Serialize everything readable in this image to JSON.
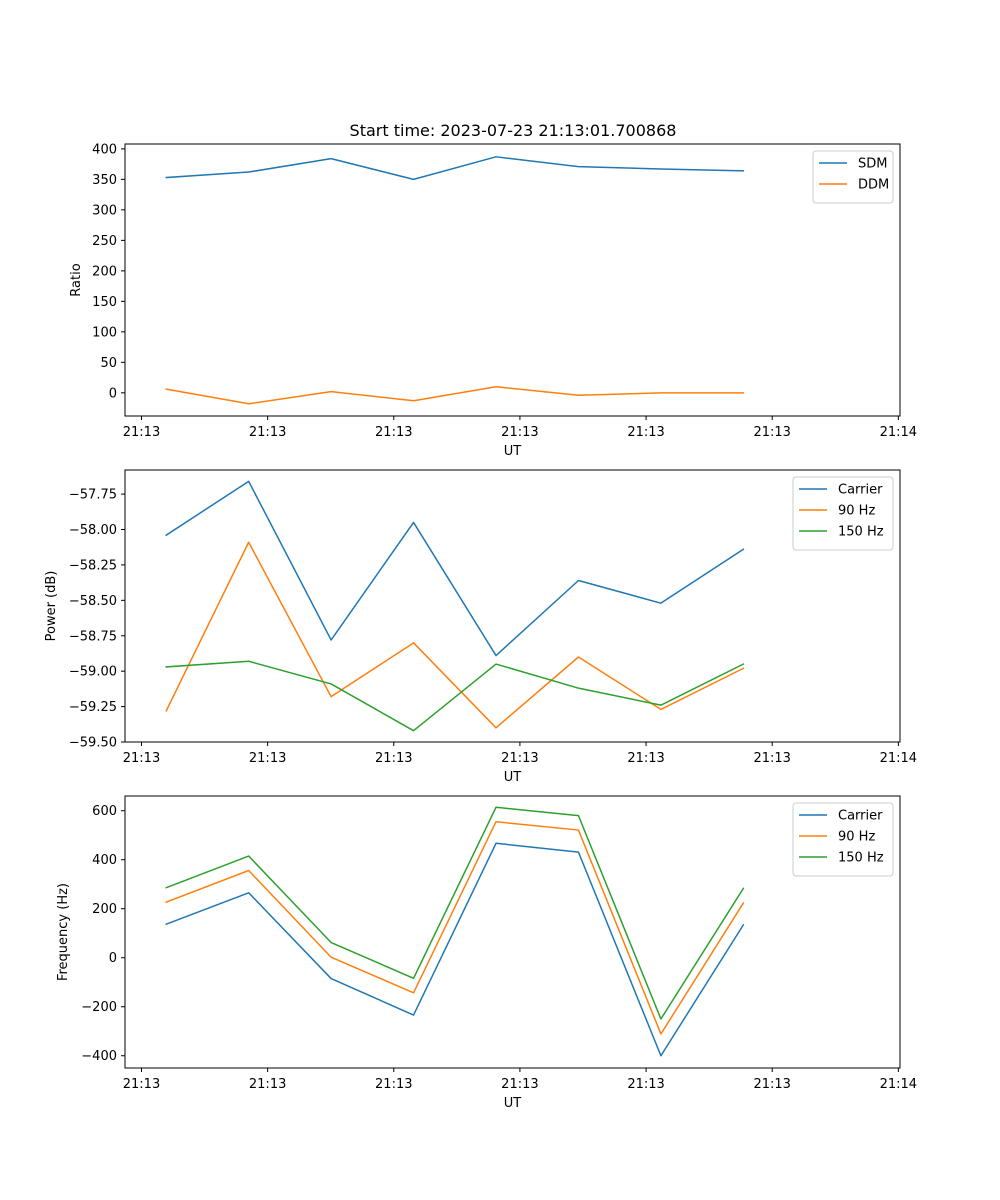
{
  "figure": {
    "title": "Start time: 2023-07-23 21:13:01.700868"
  },
  "colors": {
    "blue": "#1f77b4",
    "orange": "#ff7f0e",
    "green": "#2ca02c"
  },
  "chart_data": [
    {
      "type": "line",
      "title": "Start time: 2023-07-23 21:13:01.700868",
      "xlabel": "UT",
      "ylabel": "Ratio",
      "xlim": [
        -0.5,
        8.9
      ],
      "ylim": [
        -38,
        408
      ],
      "yticks": [
        0,
        50,
        100,
        150,
        200,
        250,
        300,
        350,
        400
      ],
      "ytick_labels": [
        "0",
        "50",
        "100",
        "150",
        "200",
        "250",
        "300",
        "350",
        "400"
      ],
      "xticks": [
        -0.3,
        1.23,
        2.76,
        4.29,
        5.82,
        7.35,
        8.88
      ],
      "xtick_labels": [
        "21:13",
        "21:13",
        "21:13",
        "21:13",
        "21:13",
        "21:13",
        "21:14"
      ],
      "x": [
        0,
        1,
        2,
        3,
        4,
        5,
        6,
        7
      ],
      "legend_loc": "upper right",
      "series": [
        {
          "name": "SDM",
          "color": "#1f77b4",
          "values": [
            353,
            362,
            384,
            350,
            387,
            371,
            367,
            364
          ]
        },
        {
          "name": "DDM",
          "color": "#ff7f0e",
          "values": [
            6,
            -18,
            2,
            -13,
            10,
            -4,
            0,
            0
          ]
        }
      ]
    },
    {
      "type": "line",
      "title": "",
      "xlabel": "UT",
      "ylabel": "Power (dB)",
      "xlim": [
        -0.5,
        8.9
      ],
      "ylim": [
        -59.5,
        -57.58
      ],
      "yticks": [
        -59.5,
        -59.25,
        -59.0,
        -58.75,
        -58.5,
        -58.25,
        -58.0,
        -57.75
      ],
      "ytick_labels": [
        "−59.50",
        "−59.25",
        "−59.00",
        "−58.75",
        "−58.50",
        "−58.25",
        "−58.00",
        "−57.75"
      ],
      "xticks": [
        -0.3,
        1.23,
        2.76,
        4.29,
        5.82,
        7.35,
        8.88
      ],
      "xtick_labels": [
        "21:13",
        "21:13",
        "21:13",
        "21:13",
        "21:13",
        "21:13",
        "21:14"
      ],
      "x": [
        0,
        1,
        2,
        3,
        4,
        5,
        6,
        7
      ],
      "legend_loc": "upper right",
      "series": [
        {
          "name": "Carrier",
          "color": "#1f77b4",
          "values": [
            -58.04,
            -57.66,
            -58.78,
            -57.95,
            -58.89,
            -58.36,
            -58.52,
            -58.14
          ]
        },
        {
          "name": "90 Hz",
          "color": "#ff7f0e",
          "values": [
            -59.28,
            -58.09,
            -59.18,
            -58.8,
            -59.4,
            -58.9,
            -59.27,
            -58.98
          ]
        },
        {
          "name": "150 Hz",
          "color": "#2ca02c",
          "values": [
            -58.97,
            -58.93,
            -59.09,
            -59.42,
            -58.95,
            -59.12,
            -59.24,
            -58.95
          ]
        }
      ]
    },
    {
      "type": "line",
      "title": "",
      "xlabel": "UT",
      "ylabel": "Frequency (Hz)",
      "xlim": [
        -0.5,
        8.9
      ],
      "ylim": [
        -450,
        660
      ],
      "yticks": [
        -400,
        -200,
        0,
        200,
        400,
        600
      ],
      "ytick_labels": [
        "−400",
        "−200",
        "0",
        "200",
        "400",
        "600"
      ],
      "xticks": [
        -0.3,
        1.23,
        2.76,
        4.29,
        5.82,
        7.35,
        8.88
      ],
      "xtick_labels": [
        "21:13",
        "21:13",
        "21:13",
        "21:13",
        "21:13",
        "21:13",
        "21:14"
      ],
      "x": [
        0,
        1,
        2,
        3,
        4,
        5,
        6,
        7
      ],
      "legend_loc": "upper right",
      "series": [
        {
          "name": "Carrier",
          "color": "#1f77b4",
          "values": [
            137,
            265,
            -85,
            -234,
            467,
            431,
            -400,
            134
          ]
        },
        {
          "name": "90 Hz",
          "color": "#ff7f0e",
          "values": [
            227,
            356,
            2,
            -143,
            555,
            521,
            -311,
            223
          ]
        },
        {
          "name": "150 Hz",
          "color": "#2ca02c",
          "values": [
            286,
            415,
            62,
            -84,
            614,
            580,
            -250,
            283
          ]
        }
      ]
    }
  ]
}
